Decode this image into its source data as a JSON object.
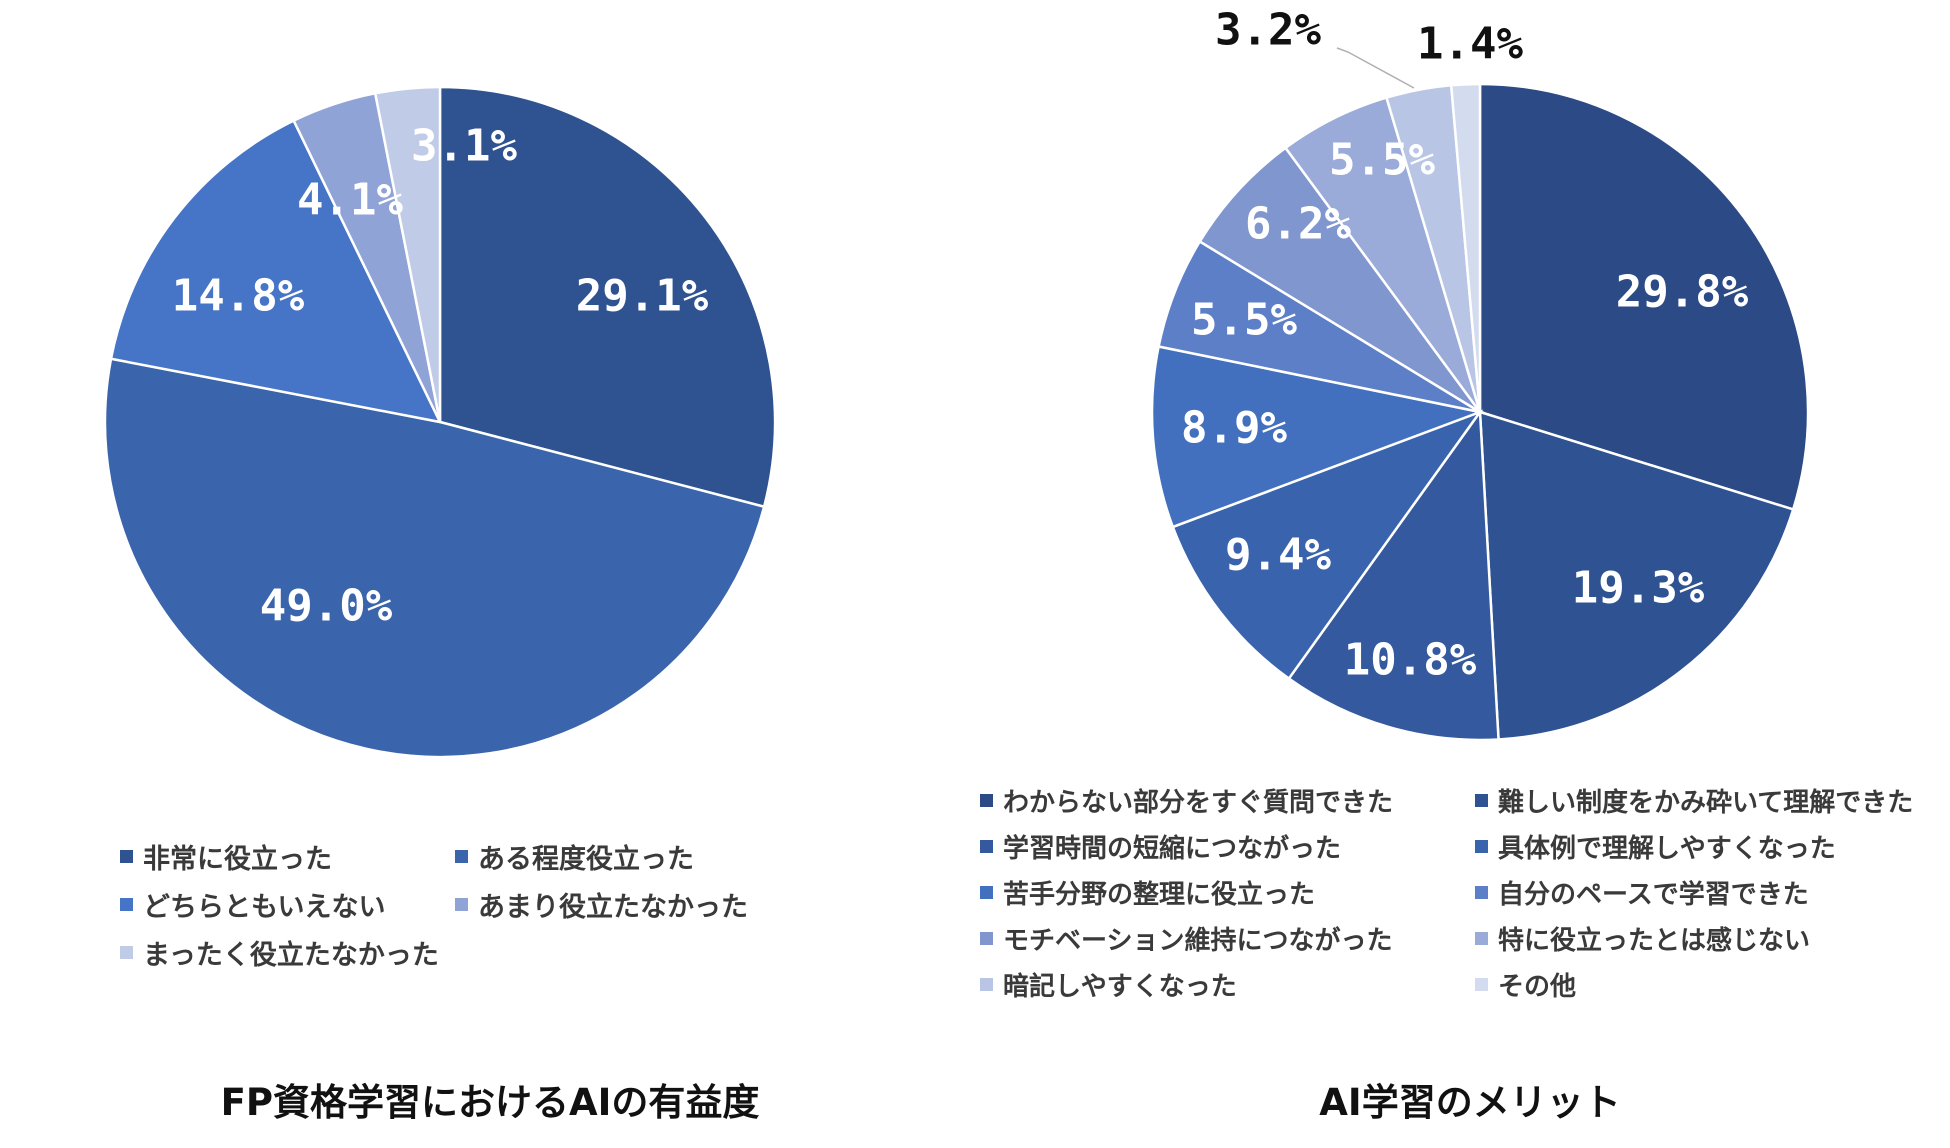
{
  "chart_data": [
    {
      "type": "pie",
      "title": "FP資格学習におけるAIの有益度",
      "categories": [
        "非常に役立った",
        "ある程度役立った",
        "どちらともいえない",
        "あまり役立たなかった",
        "まったく役立たなかった"
      ],
      "values": [
        29.1,
        49.0,
        14.8,
        4.1,
        3.1
      ],
      "data_labels": [
        "29.1%",
        "49.0%",
        "14.8%",
        "4.1%",
        "3.1%"
      ],
      "colors": [
        "#2f5290",
        "#3a65ac",
        "#4674c6",
        "#8fa3d6",
        "#c0cbe8"
      ],
      "legend_position": "bottom"
    },
    {
      "type": "pie",
      "title": "AI学習のメリット",
      "categories": [
        "わからない部分をすぐ質問できた",
        "難しい制度をかみ砕いて理解できた",
        "学習時間の短縮につながった",
        "具体例で理解しやすくなった",
        "苦手分野の整理に役立った",
        "自分のペースで学習できた",
        "モチベーション維持につながった",
        "特に役立ったとは感じない",
        "暗記しやすくなった",
        "その他"
      ],
      "values": [
        29.8,
        19.3,
        10.8,
        9.4,
        8.9,
        5.5,
        6.2,
        5.5,
        3.2,
        1.4
      ],
      "data_labels": [
        "29.8%",
        "19.3%",
        "10.8%",
        "9.4%",
        "8.9%",
        "5.5%",
        "6.2%",
        "5.5%",
        "3.2%",
        "1.4%"
      ],
      "colors": [
        "#2b4a86",
        "#2f5292",
        "#34599e",
        "#3a63ad",
        "#4270bf",
        "#5d7fc7",
        "#8096ce",
        "#9aabd9",
        "#b9c5e5",
        "#d3dbef"
      ],
      "legend_position": "bottom"
    }
  ]
}
